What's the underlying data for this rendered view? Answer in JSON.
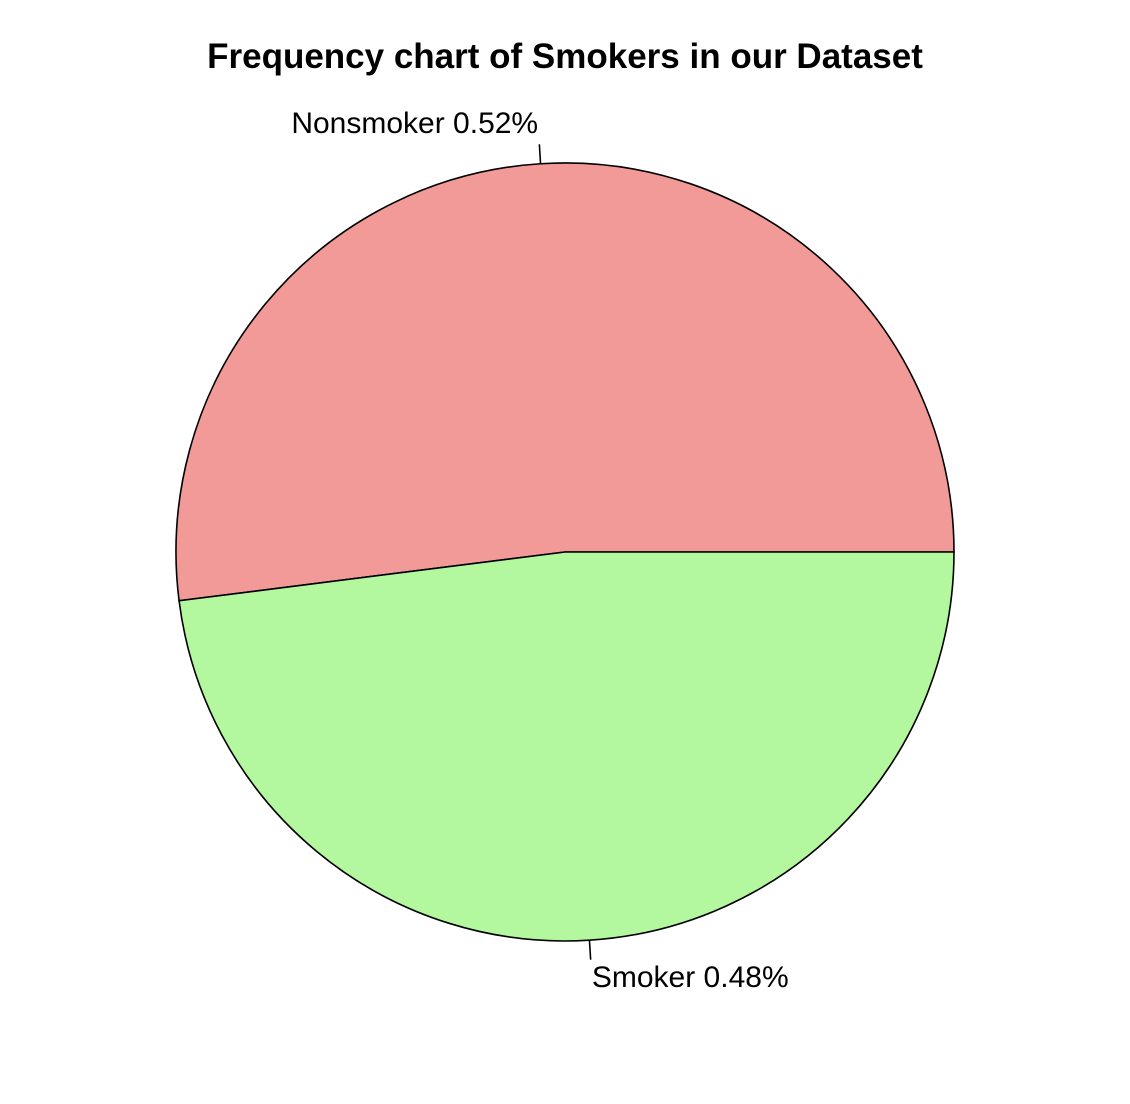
{
  "chart_data": {
    "type": "pie",
    "title": "Frequency chart of Smokers in our Dataset",
    "slices": [
      {
        "name": "Nonsmoker",
        "value": 0.52,
        "label": "Nonsmoker 0.52%",
        "color": "#f19a98"
      },
      {
        "name": "Smoker",
        "value": 0.48,
        "label": "Smoker 0.48%",
        "color": "#b3f79e"
      }
    ],
    "start_angle": "3 o'clock",
    "direction": "counterclockwise",
    "border_color": "#000000",
    "background": "#ffffff"
  }
}
